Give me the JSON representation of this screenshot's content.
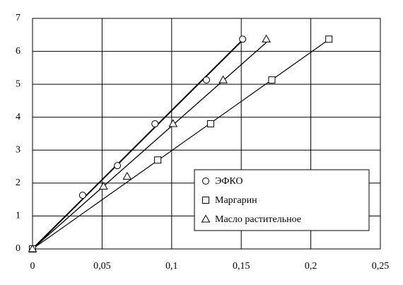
{
  "chart_data": {
    "type": "scatter",
    "xlim": [
      0,
      0.25
    ],
    "xticks": [
      0,
      {
        "value": 0.05,
        "label": "0,05"
      },
      {
        "value": 0.1,
        "label": "0,1"
      },
      {
        "value": 0.15,
        "label": "0,15"
      },
      {
        "value": 0.2,
        "label": "0,2"
      },
      {
        "value": 0.25,
        "label": "0,25"
      }
    ],
    "ylim": [
      0,
      7
    ],
    "yticks": [
      0,
      1,
      2,
      3,
      4,
      5,
      6,
      7
    ],
    "grid": true,
    "legend": "lower-right",
    "series": [
      {
        "name": "ЭФКО",
        "marker": "circle",
        "color": "#000000",
        "x": [
          0,
          0.036,
          0.061,
          0.088,
          0.125,
          0.151
        ],
        "y": [
          0,
          1.63,
          2.53,
          3.8,
          5.13,
          6.37
        ]
      },
      {
        "name": "Маргарин",
        "marker": "square",
        "color": "#000000",
        "x": [
          0,
          0.09,
          0.128,
          0.172,
          0.213
        ],
        "y": [
          0,
          2.7,
          3.8,
          5.13,
          6.37
        ]
      },
      {
        "name": "Масло растительное",
        "marker": "triangle",
        "color": "#000000",
        "x": [
          0,
          0.051,
          0.068,
          0.101,
          0.137,
          0.168
        ],
        "y": [
          0,
          1.9,
          2.2,
          3.8,
          5.13,
          6.37
        ]
      }
    ]
  }
}
